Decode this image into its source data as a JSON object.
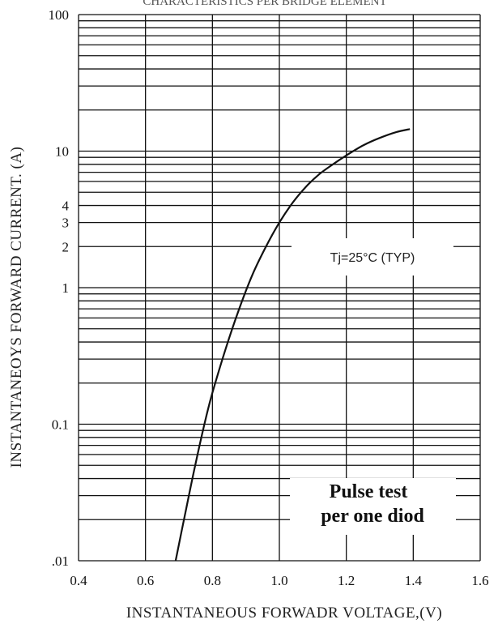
{
  "chart_data": {
    "type": "line",
    "title": "CHARACTERISTICS PER BRIDGE ELEMENT",
    "xlabel": "INSTANTANEOUS FORWADR VOLTAGE,(V)",
    "ylabel": "INSTANTANEOYS FORWARD CURRENT. (A)",
    "xlim": [
      0.4,
      1.6
    ],
    "ylim": [
      0.01,
      100
    ],
    "y_scale": "log",
    "grid": true,
    "x_ticks": [
      "0.4",
      "0.6",
      "0.8",
      "1.0",
      "1.2",
      "1.4",
      "1.6"
    ],
    "x_tick_values": [
      0.4,
      0.6,
      0.8,
      1.0,
      1.2,
      1.4,
      1.6
    ],
    "y_ticks": [
      "100",
      "10",
      "4",
      "3",
      "2",
      "1",
      "0.1",
      ".01"
    ],
    "y_tick_values": [
      100,
      10,
      4,
      3,
      2,
      1,
      0.1,
      0.01
    ],
    "series": [
      {
        "x": [
          0.69,
          0.72,
          0.75,
          0.78,
          0.8,
          0.84,
          0.88,
          0.92,
          0.96,
          1.0,
          1.04,
          1.08,
          1.12,
          1.16,
          1.2,
          1.25,
          1.3,
          1.35,
          1.39
        ],
        "y": [
          0.01,
          0.023,
          0.052,
          0.11,
          0.17,
          0.36,
          0.7,
          1.25,
          2.0,
          3.0,
          4.2,
          5.5,
          6.8,
          8.0,
          9.3,
          11.0,
          12.5,
          13.8,
          14.5
        ]
      }
    ],
    "annotations": {
      "condition": "Tj=25°C (TYP)",
      "note_line1": "Pulse test",
      "note_line2": "per one diod"
    },
    "colors": {
      "line": "#111111",
      "grid": "#111111"
    }
  }
}
